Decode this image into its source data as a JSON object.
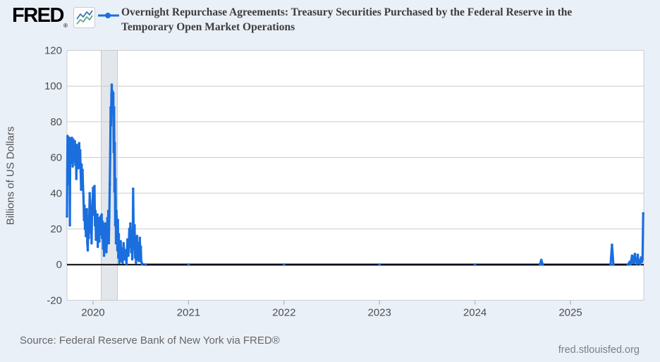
{
  "header": {
    "logo_text": "FRED",
    "registered_mark": "®",
    "legend_label_line1": "Overnight Repurchase Agreements: Treasury Securities Purchased by the Federal Reserve in the",
    "legend_label_line2": "Temporary Open Market Operations"
  },
  "footer": {
    "source": "Source: Federal Reserve Bank of New York via FRED®",
    "site": "fred.stlouisfed.org"
  },
  "chart_data": {
    "type": "line",
    "title": "Overnight Repurchase Agreements: Treasury Securities Purchased by the Federal Reserve in the Temporary Open Market Operations",
    "ylabel": "Billions of US Dollars",
    "xlabel": "",
    "ylim": [
      -20,
      120
    ],
    "yticks": [
      -20,
      0,
      20,
      40,
      60,
      80,
      100,
      120
    ],
    "xlim": [
      2019.727,
      2025.768
    ],
    "xticks": [
      2020,
      2021,
      2022,
      2023,
      2024,
      2025
    ],
    "grid": "horizontal",
    "legend_position": "top-left",
    "line_color": "#1b6ede",
    "zero_line_color": "#000000",
    "grid_color": "#cccccc",
    "plot_bg": "#ffffff",
    "page_bg": "#eaf0f8",
    "tick_label_color": "#4d4d4d",
    "recession_band": {
      "start": 2020.085,
      "end": 2020.255,
      "color": "#e3e6eb",
      "edge": "#c6cace"
    },
    "series": [
      {
        "name": "Overnight Repurchase Agreements: Treasury Securities Purchased by the Federal Reserve in the Temporary Open Market Operations",
        "units": "Billions of US Dollars",
        "points": [
          [
            2019.727,
            27
          ],
          [
            2019.73,
            53
          ],
          [
            2019.733,
            72
          ],
          [
            2019.736,
            62
          ],
          [
            2019.739,
            70
          ],
          [
            2019.742,
            55
          ],
          [
            2019.745,
            66
          ],
          [
            2019.748,
            45
          ],
          [
            2019.751,
            71
          ],
          [
            2019.754,
            64
          ],
          [
            2019.757,
            22
          ],
          [
            2019.76,
            58
          ],
          [
            2019.763,
            68
          ],
          [
            2019.766,
            62
          ],
          [
            2019.769,
            70
          ],
          [
            2019.772,
            57
          ],
          [
            2019.775,
            65
          ],
          [
            2019.778,
            71
          ],
          [
            2019.781,
            60
          ],
          [
            2019.784,
            67
          ],
          [
            2019.787,
            55
          ],
          [
            2019.79,
            63
          ],
          [
            2019.793,
            70
          ],
          [
            2019.796,
            58
          ],
          [
            2019.8,
            66
          ],
          [
            2019.805,
            61
          ],
          [
            2019.81,
            69
          ],
          [
            2019.815,
            56
          ],
          [
            2019.82,
            64
          ],
          [
            2019.825,
            48
          ],
          [
            2019.83,
            67
          ],
          [
            2019.835,
            59
          ],
          [
            2019.84,
            65
          ],
          [
            2019.845,
            54
          ],
          [
            2019.85,
            62
          ],
          [
            2019.855,
            68
          ],
          [
            2019.86,
            57
          ],
          [
            2019.865,
            64
          ],
          [
            2019.87,
            52
          ],
          [
            2019.875,
            42
          ],
          [
            2019.88,
            56
          ],
          [
            2019.885,
            48
          ],
          [
            2019.89,
            53
          ],
          [
            2019.895,
            44
          ],
          [
            2019.9,
            38
          ],
          [
            2019.905,
            25
          ],
          [
            2019.91,
            33
          ],
          [
            2019.915,
            20
          ],
          [
            2019.92,
            28
          ],
          [
            2019.925,
            16
          ],
          [
            2019.93,
            24
          ],
          [
            2019.935,
            31
          ],
          [
            2019.94,
            12
          ],
          [
            2019.945,
            8
          ],
          [
            2019.95,
            22
          ],
          [
            2019.955,
            15
          ],
          [
            2019.96,
            27
          ],
          [
            2019.965,
            40
          ],
          [
            2019.97,
            31
          ],
          [
            2019.975,
            18
          ],
          [
            2019.98,
            26
          ],
          [
            2019.985,
            12
          ],
          [
            2019.99,
            30
          ],
          [
            2019.995,
            36
          ],
          [
            2020.0,
            43
          ],
          [
            2020.005,
            28
          ],
          [
            2020.01,
            35
          ],
          [
            2020.015,
            44
          ],
          [
            2020.02,
            22
          ],
          [
            2020.025,
            30
          ],
          [
            2020.03,
            14
          ],
          [
            2020.035,
            25
          ],
          [
            2020.04,
            18
          ],
          [
            2020.045,
            28
          ],
          [
            2020.05,
            10
          ],
          [
            2020.055,
            21
          ],
          [
            2020.06,
            26
          ],
          [
            2020.065,
            13
          ],
          [
            2020.07,
            23
          ],
          [
            2020.075,
            17
          ],
          [
            2020.08,
            27
          ],
          [
            2020.085,
            20
          ],
          [
            2020.09,
            28
          ],
          [
            2020.095,
            15
          ],
          [
            2020.1,
            24
          ],
          [
            2020.105,
            9
          ],
          [
            2020.11,
            18
          ],
          [
            2020.115,
            5
          ],
          [
            2020.12,
            14
          ],
          [
            2020.125,
            23
          ],
          [
            2020.13,
            11
          ],
          [
            2020.135,
            19
          ],
          [
            2020.14,
            7
          ],
          [
            2020.145,
            15
          ],
          [
            2020.15,
            26
          ],
          [
            2020.155,
            18
          ],
          [
            2020.16,
            30
          ],
          [
            2020.165,
            12
          ],
          [
            2020.17,
            27
          ],
          [
            2020.175,
            45
          ],
          [
            2020.18,
            62
          ],
          [
            2020.184,
            88
          ],
          [
            2020.188,
            78
          ],
          [
            2020.192,
            95
          ],
          [
            2020.196,
            100.8
          ],
          [
            2020.2,
            93
          ],
          [
            2020.204,
            97
          ],
          [
            2020.208,
            85
          ],
          [
            2020.212,
            96
          ],
          [
            2020.216,
            63
          ],
          [
            2020.22,
            88
          ],
          [
            2020.224,
            41
          ],
          [
            2020.228,
            68
          ],
          [
            2020.232,
            22
          ],
          [
            2020.236,
            48
          ],
          [
            2020.24,
            12
          ],
          [
            2020.245,
            30
          ],
          [
            2020.25,
            19
          ],
          [
            2020.255,
            8
          ],
          [
            2020.26,
            25
          ],
          [
            2020.265,
            4
          ],
          [
            2020.27,
            17
          ],
          [
            2020.275,
            1
          ],
          [
            2020.28,
            10
          ],
          [
            2020.285,
            6
          ],
          [
            2020.29,
            13
          ],
          [
            2020.295,
            2
          ],
          [
            2020.3,
            9
          ],
          [
            2020.31,
            1
          ],
          [
            2020.32,
            12
          ],
          [
            2020.33,
            3
          ],
          [
            2020.34,
            8
          ],
          [
            2020.35,
            0.5
          ],
          [
            2020.36,
            14
          ],
          [
            2020.37,
            5
          ],
          [
            2020.38,
            20
          ],
          [
            2020.385,
            10
          ],
          [
            2020.39,
            23
          ],
          [
            2020.395,
            15
          ],
          [
            2020.4,
            7
          ],
          [
            2020.405,
            18
          ],
          [
            2020.41,
            3
          ],
          [
            2020.415,
            11
          ],
          [
            2020.42,
            42.5
          ],
          [
            2020.425,
            21
          ],
          [
            2020.43,
            9
          ],
          [
            2020.435,
            22
          ],
          [
            2020.44,
            4
          ],
          [
            2020.445,
            13
          ],
          [
            2020.45,
            1
          ],
          [
            2020.455,
            8
          ],
          [
            2020.46,
            16
          ],
          [
            2020.465,
            3
          ],
          [
            2020.47,
            7
          ],
          [
            2020.475,
            12
          ],
          [
            2020.48,
            2
          ],
          [
            2020.485,
            9
          ],
          [
            2020.49,
            15
          ],
          [
            2020.495,
            5
          ],
          [
            2020.5,
            10
          ],
          [
            2020.505,
            2
          ],
          [
            2020.51,
            1
          ],
          [
            2020.515,
            0.1
          ],
          [
            2020.55,
            0
          ],
          [
            2021.0,
            0
          ],
          [
            2022.0,
            0
          ],
          [
            2023.0,
            0
          ],
          [
            2024.0,
            0
          ],
          [
            2024.68,
            0
          ],
          [
            2024.695,
            2.6
          ],
          [
            2024.71,
            0
          ],
          [
            2025.42,
            0
          ],
          [
            2025.435,
            11.1
          ],
          [
            2025.45,
            0
          ],
          [
            2025.6,
            0
          ],
          [
            2025.62,
            1.5
          ],
          [
            2025.63,
            0.3
          ],
          [
            2025.645,
            5
          ],
          [
            2025.65,
            1
          ],
          [
            2025.66,
            4.5
          ],
          [
            2025.665,
            0.8
          ],
          [
            2025.675,
            6
          ],
          [
            2025.68,
            2
          ],
          [
            2025.69,
            3.2
          ],
          [
            2025.695,
            0.5
          ],
          [
            2025.705,
            5.5
          ],
          [
            2025.712,
            1
          ],
          [
            2025.72,
            2.5
          ],
          [
            2025.73,
            0.4
          ],
          [
            2025.74,
            4
          ],
          [
            2025.748,
            1.5
          ],
          [
            2025.755,
            3
          ],
          [
            2025.762,
            28.7
          ]
        ]
      }
    ]
  }
}
